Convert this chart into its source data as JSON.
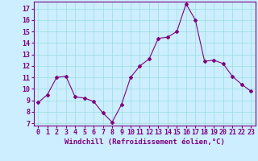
{
  "x": [
    0,
    1,
    2,
    3,
    4,
    5,
    6,
    7,
    8,
    9,
    10,
    11,
    12,
    13,
    14,
    15,
    16,
    17,
    18,
    19,
    20,
    21,
    22,
    23
  ],
  "y": [
    8.8,
    9.5,
    11.0,
    11.1,
    9.3,
    9.2,
    8.9,
    7.9,
    7.1,
    8.6,
    11.0,
    12.0,
    12.6,
    14.4,
    14.5,
    15.0,
    17.4,
    16.0,
    12.4,
    12.5,
    12.2,
    11.1,
    10.4,
    9.8
  ],
  "line_color": "#800080",
  "marker": "D",
  "marker_size": 2,
  "bg_color": "#cceeff",
  "grid_color": "#99dddd",
  "xlabel": "Windchill (Refroidissement éolien,°C)",
  "xlabel_color": "#800080",
  "tick_color": "#800080",
  "ylim": [
    6.8,
    17.6
  ],
  "xlim": [
    -0.5,
    23.5
  ],
  "yticks": [
    7,
    8,
    9,
    10,
    11,
    12,
    13,
    14,
    15,
    16,
    17
  ],
  "xticks": [
    0,
    1,
    2,
    3,
    4,
    5,
    6,
    7,
    8,
    9,
    10,
    11,
    12,
    13,
    14,
    15,
    16,
    17,
    18,
    19,
    20,
    21,
    22,
    23
  ],
  "tick_fontsize": 6,
  "xlabel_fontsize": 6.5
}
